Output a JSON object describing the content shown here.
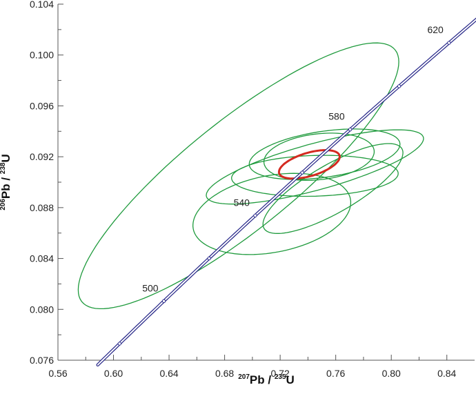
{
  "chart_data": {
    "type": "scatter",
    "subtype": "concordia-diagram",
    "xlabel": {
      "sup1": "207",
      "base1": "Pb",
      "sep": " / ",
      "sup2": "235",
      "base2": "U"
    },
    "ylabel": {
      "sup1": "206",
      "base1": "Pb",
      "sep": " / ",
      "sup2": "238",
      "base2": "U"
    },
    "xlim": [
      0.56,
      0.86
    ],
    "ylim": [
      0.076,
      0.104
    ],
    "x_ticks": [
      0.56,
      0.6,
      0.64,
      0.68,
      0.72,
      0.76,
      0.8,
      0.84
    ],
    "x_tick_labels": [
      "0.56",
      "0.60",
      "0.64",
      "0.68",
      "0.72",
      "0.76",
      "0.80",
      "0.84"
    ],
    "y_ticks": [
      0.076,
      0.08,
      0.084,
      0.088,
      0.092,
      0.096,
      0.1,
      0.104
    ],
    "y_tick_labels": [
      "0.076",
      "0.080",
      "0.084",
      "0.088",
      "0.092",
      "0.096",
      "0.100",
      "0.104"
    ],
    "grid": false,
    "concordia": {
      "age_range_ma": [
        470,
        650
      ],
      "marker_ages_ma": [
        480,
        500,
        520,
        540,
        560,
        580,
        600,
        620
      ],
      "labeled_ages": [
        {
          "age": 500,
          "text": "500"
        },
        {
          "age": 540,
          "text": "540"
        },
        {
          "age": 580,
          "text": "580"
        },
        {
          "age": 620,
          "text": "620"
        }
      ]
    },
    "ellipses": [
      {
        "cx": 0.69,
        "cy": 0.0905,
        "rx": 0.155,
        "ry": 0.004,
        "angle_deg": 44,
        "color": "#1e9a3c"
      },
      {
        "cx": 0.745,
        "cy": 0.0912,
        "rx": 0.082,
        "ry": 0.0018,
        "angle_deg": 18,
        "color": "#1e9a3c"
      },
      {
        "cx": 0.752,
        "cy": 0.0922,
        "rx": 0.055,
        "ry": 0.0018,
        "angle_deg": 10,
        "color": "#1e9a3c"
      },
      {
        "cx": 0.748,
        "cy": 0.092,
        "rx": 0.04,
        "ry": 0.0018,
        "angle_deg": 8,
        "color": "#1e9a3c"
      },
      {
        "cx": 0.745,
        "cy": 0.0905,
        "rx": 0.06,
        "ry": 0.0016,
        "angle_deg": 2,
        "color": "#1e9a3c"
      },
      {
        "cx": 0.758,
        "cy": 0.0895,
        "rx": 0.06,
        "ry": 0.0018,
        "angle_deg": 35,
        "color": "#1e9a3c"
      },
      {
        "cx": 0.714,
        "cy": 0.0875,
        "rx": 0.058,
        "ry": 0.003,
        "angle_deg": 14,
        "color": "#1e9a3c"
      },
      {
        "cx": 0.741,
        "cy": 0.0914,
        "rx": 0.023,
        "ry": 0.0009,
        "angle_deg": 20,
        "color": "#d42a20",
        "mean": true
      }
    ],
    "colors": {
      "concordia": "#2a2a8a",
      "ellipse": "#1e9a3c",
      "mean_ellipse": "#d42a20",
      "axis": "#555555"
    }
  }
}
